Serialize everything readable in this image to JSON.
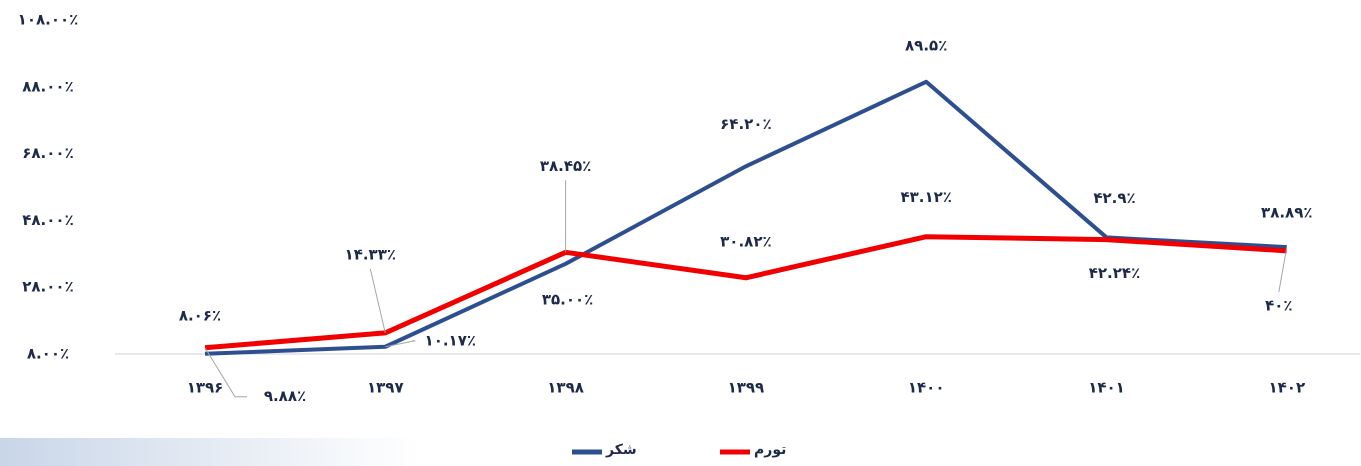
{
  "chart_data": {
    "type": "line",
    "categories": [
      "۱۳۹۶",
      "۱۳۹۷",
      "۱۳۹۸",
      "۱۳۹۹",
      "۱۴۰۰",
      "۱۴۰۱",
      "۱۴۰۲"
    ],
    "series": [
      {
        "name": "شکر",
        "color": "#2e4f8f",
        "values": [
          8.06,
          10.17,
          35,
          64.2,
          89.5,
          42.9,
          40
        ],
        "value_labels": [
          "۸.۰۶٪",
          "۱۰.۱۷٪",
          "۳۵.۰۰٪",
          "۶۴.۲۰٪",
          "۸۹.۵٪",
          "۴۲.۹٪",
          "۴۰٪"
        ]
      },
      {
        "name": "تورم",
        "color": "#f00000",
        "values": [
          9.88,
          14.33,
          38.45,
          30.82,
          43.12,
          42.24,
          38.89
        ],
        "value_labels": [
          "۹.۸۸٪",
          "۱۴.۳۳٪",
          "۳۸.۴۵٪",
          "۳۰.۸۲٪",
          "۴۳.۱۲٪",
          "۴۲.۲۴٪",
          "۳۸.۸۹٪"
        ]
      }
    ],
    "ylim": [
      8,
      108
    ],
    "yticks": [
      {
        "value": 8,
        "label": "۸.۰۰٪"
      },
      {
        "value": 28,
        "label": "۲۸.۰۰٪"
      },
      {
        "value": 48,
        "label": "۴۸.۰۰٪"
      },
      {
        "value": 68,
        "label": "۶۸.۰۰٪"
      },
      {
        "value": 88,
        "label": "۸۸.۰۰٪"
      },
      {
        "value": 108,
        "label": "۱۰۸.۰۰٪"
      }
    ],
    "grid": false,
    "legend": "bottom"
  }
}
